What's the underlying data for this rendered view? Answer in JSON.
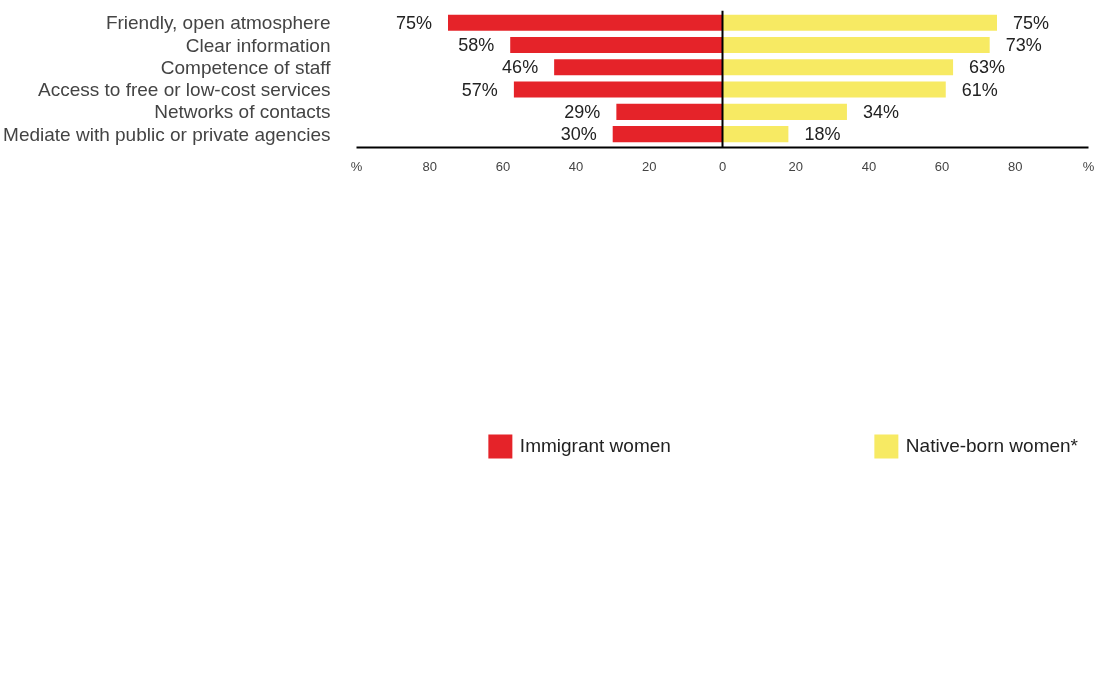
{
  "chart_data": {
    "type": "bar",
    "orientation": "horizontal",
    "categories": [
      "Friendly, open atmosphere",
      "Clear information",
      "Competence of staff",
      "Access to free or low-cost services",
      "Networks of contacts",
      "Mediate with public or private agencies"
    ],
    "series": [
      {
        "name": "Immigrant women",
        "color": "#e52329",
        "values": [
          75,
          58,
          46,
          57,
          29,
          30
        ],
        "base": [
          -75,
          -58,
          -46,
          -57,
          -29,
          -30
        ],
        "value_labels": [
          "75%",
          "58%",
          "46%",
          "57%",
          "29%",
          "30%"
        ]
      },
      {
        "name": "Native-born women*",
        "color": "#f7ea63",
        "values": [
          75,
          73,
          63,
          61,
          34,
          18
        ],
        "value_labels": [
          "75%",
          "73%",
          "63%",
          "61%",
          "34%",
          "18%"
        ]
      }
    ],
    "xlim": [
      -100,
      100
    ],
    "xticks": [
      {
        "value": -100,
        "label": "%"
      },
      {
        "value": -80,
        "label": "80"
      },
      {
        "value": -60,
        "label": "60"
      },
      {
        "value": -40,
        "label": "40"
      },
      {
        "value": -20,
        "label": "20"
      },
      0,
      20,
      40,
      60,
      80,
      {
        "value": 100,
        "label": "%"
      }
    ],
    "ref_lines": [
      {
        "axis": "x",
        "value": 0,
        "label": null
      }
    ],
    "grid": false,
    "legend": "bottom"
  }
}
